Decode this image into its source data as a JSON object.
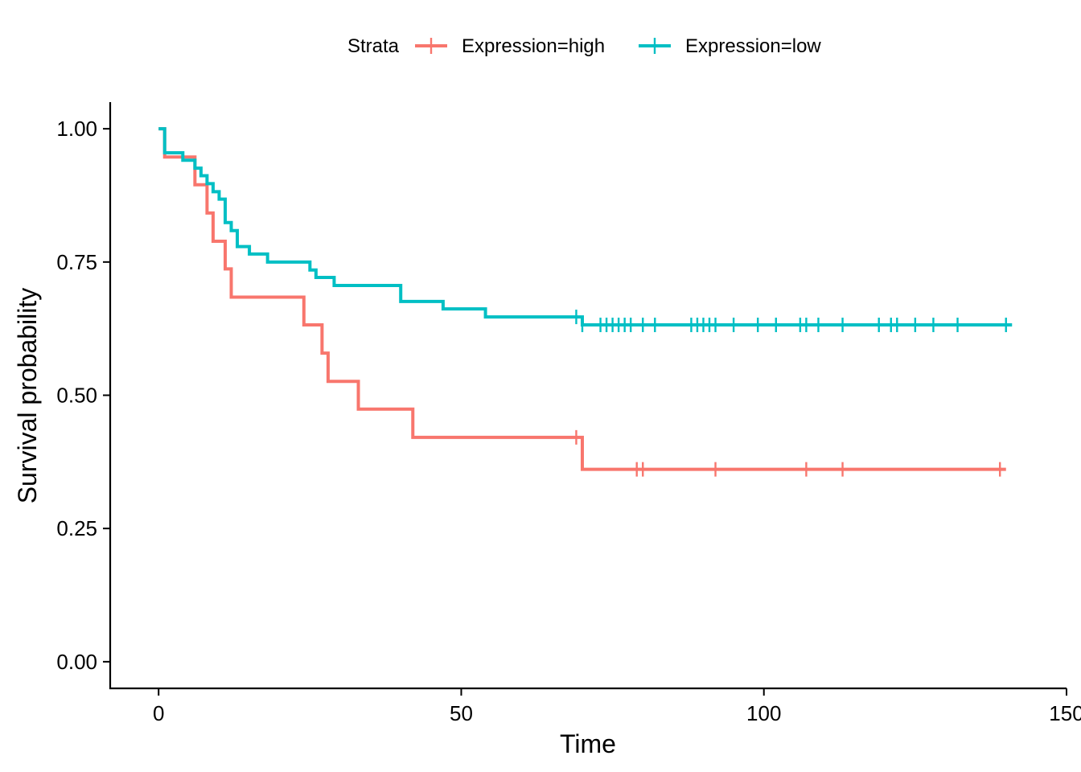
{
  "chart_data": {
    "type": "line",
    "subtype": "kaplan-meier step",
    "title": "",
    "xlabel": "Time",
    "ylabel": "Survival probability",
    "xlim": [
      -8,
      150
    ],
    "ylim": [
      -0.05,
      1.05
    ],
    "xticks": [
      0,
      50,
      100,
      150
    ],
    "xtick_labels": [
      "0",
      "50",
      "100",
      "150"
    ],
    "yticks": [
      0,
      0.25,
      0.5,
      0.75,
      1.0
    ],
    "ytick_labels": [
      "0.00",
      "0.25",
      "0.50",
      "0.75",
      "1.00"
    ],
    "grid": false,
    "legend": {
      "position": "top",
      "title": "Strata",
      "entries": [
        "Expression=high",
        "Expression=low"
      ]
    },
    "series": [
      {
        "name": "Expression=high",
        "color": "#F8766D",
        "steps": [
          [
            0,
            1.0
          ],
          [
            1,
            0.947
          ],
          [
            6,
            0.895
          ],
          [
            8,
            0.842
          ],
          [
            9,
            0.789
          ],
          [
            11,
            0.737
          ],
          [
            12,
            0.684
          ],
          [
            24,
            0.632
          ],
          [
            27,
            0.579
          ],
          [
            28,
            0.526
          ],
          [
            33,
            0.474
          ],
          [
            42,
            0.421
          ],
          [
            70,
            0.361
          ],
          [
            140,
            0.361
          ]
        ],
        "censored": [
          [
            69,
            0.421
          ],
          [
            79,
            0.361
          ],
          [
            80,
            0.361
          ],
          [
            92,
            0.361
          ],
          [
            107,
            0.361
          ],
          [
            113,
            0.361
          ],
          [
            139,
            0.361
          ]
        ]
      },
      {
        "name": "Expression=low",
        "color": "#00BFC4",
        "steps": [
          [
            0,
            1.0
          ],
          [
            1,
            0.955
          ],
          [
            4,
            0.941
          ],
          [
            6,
            0.926
          ],
          [
            7,
            0.912
          ],
          [
            8,
            0.897
          ],
          [
            9,
            0.882
          ],
          [
            10,
            0.868
          ],
          [
            11,
            0.824
          ],
          [
            12,
            0.809
          ],
          [
            13,
            0.779
          ],
          [
            15,
            0.765
          ],
          [
            18,
            0.75
          ],
          [
            25,
            0.735
          ],
          [
            26,
            0.721
          ],
          [
            29,
            0.706
          ],
          [
            40,
            0.676
          ],
          [
            47,
            0.662
          ],
          [
            54,
            0.647
          ],
          [
            70,
            0.632
          ],
          [
            141,
            0.632
          ]
        ],
        "censored": [
          [
            69,
            0.647
          ],
          [
            70,
            0.632
          ],
          [
            73,
            0.632
          ],
          [
            74,
            0.632
          ],
          [
            75,
            0.632
          ],
          [
            76,
            0.632
          ],
          [
            77,
            0.632
          ],
          [
            78,
            0.632
          ],
          [
            80,
            0.632
          ],
          [
            82,
            0.632
          ],
          [
            88,
            0.632
          ],
          [
            89,
            0.632
          ],
          [
            90,
            0.632
          ],
          [
            91,
            0.632
          ],
          [
            92,
            0.632
          ],
          [
            95,
            0.632
          ],
          [
            99,
            0.632
          ],
          [
            102,
            0.632
          ],
          [
            106,
            0.632
          ],
          [
            107,
            0.632
          ],
          [
            109,
            0.632
          ],
          [
            113,
            0.632
          ],
          [
            119,
            0.632
          ],
          [
            121,
            0.632
          ],
          [
            122,
            0.632
          ],
          [
            125,
            0.632
          ],
          [
            128,
            0.632
          ],
          [
            132,
            0.632
          ],
          [
            140,
            0.632
          ]
        ]
      }
    ]
  }
}
